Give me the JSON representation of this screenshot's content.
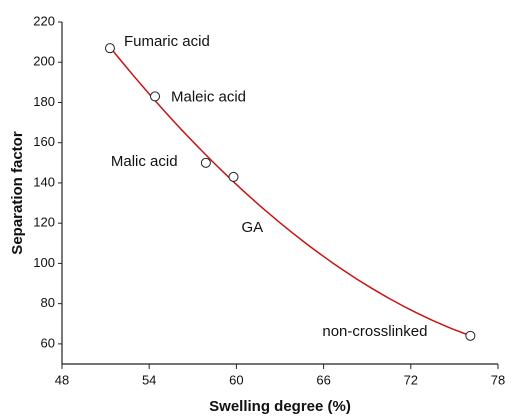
{
  "chart_data": {
    "type": "scatter",
    "xlabel": "Swelling degree (%)",
    "ylabel": "Separation factor",
    "x": [
      51.3,
      54.4,
      57.9,
      59.8,
      76.1
    ],
    "values": [
      207,
      183,
      150,
      143,
      64
    ],
    "point_labels": [
      "Fumaric acid",
      "Maleic acid",
      "Malic acid",
      "GA",
      "non-crosslinked"
    ],
    "marker_color": "#222222",
    "fit_color": "#c81414",
    "xlim": [
      48,
      78
    ],
    "xticks": [
      48,
      54,
      60,
      66,
      72,
      78
    ],
    "ylim": [
      50,
      220
    ],
    "yticks": [
      60,
      80,
      100,
      120,
      140,
      160,
      180,
      200,
      220
    ],
    "grid": false
  }
}
